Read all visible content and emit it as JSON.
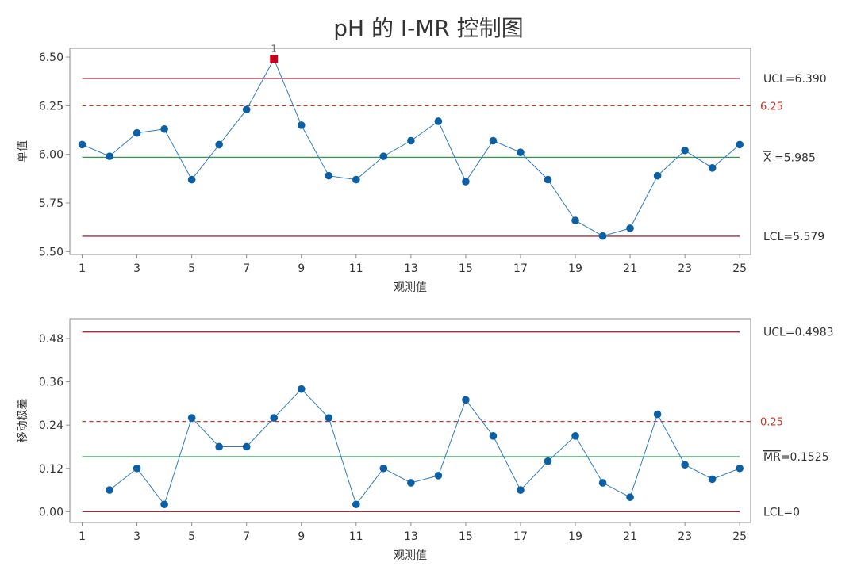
{
  "title": "pH 的 I-MR 控制图",
  "chart_data": [
    {
      "type": "line",
      "panel": "individuals",
      "xlabel": "观测值",
      "ylabel": "单值",
      "x": [
        1,
        2,
        3,
        4,
        5,
        6,
        7,
        8,
        9,
        10,
        11,
        12,
        13,
        14,
        15,
        16,
        17,
        18,
        19,
        20,
        21,
        22,
        23,
        24,
        25
      ],
      "xticks": [
        1,
        3,
        5,
        7,
        9,
        11,
        13,
        15,
        17,
        19,
        21,
        23,
        25
      ],
      "xlim": [
        0.55,
        25.4
      ],
      "yticks": [
        5.5,
        5.75,
        6.0,
        6.25,
        6.5
      ],
      "ytick_labels": [
        "5.50",
        "5.75",
        "6.00",
        "6.25",
        "6.50"
      ],
      "ylim": [
        5.485,
        6.545
      ],
      "values": [
        6.05,
        5.99,
        6.11,
        6.13,
        5.87,
        6.05,
        6.23,
        6.49,
        6.15,
        5.89,
        5.87,
        5.99,
        6.07,
        6.17,
        5.86,
        6.07,
        6.01,
        5.87,
        5.66,
        5.58,
        5.62,
        5.89,
        6.02,
        5.93,
        6.05
      ],
      "flagged": [
        {
          "index": 8,
          "label": "1"
        }
      ],
      "limits": {
        "ucl": {
          "value": 6.39,
          "label": "UCL=6.390"
        },
        "center": {
          "value": 5.985,
          "label_symbol": "X",
          "label_rest": " =5.985"
        },
        "lcl": {
          "value": 5.579,
          "label": "LCL=5.579"
        },
        "spec": {
          "value": 6.25,
          "label": "6.25"
        }
      },
      "grid": false
    },
    {
      "type": "line",
      "panel": "moving-range",
      "xlabel": "观测值",
      "ylabel": "移动极差",
      "x": [
        1,
        2,
        3,
        4,
        5,
        6,
        7,
        8,
        9,
        10,
        11,
        12,
        13,
        14,
        15,
        16,
        17,
        18,
        19,
        20,
        21,
        22,
        23,
        24,
        25
      ],
      "xticks": [
        1,
        3,
        5,
        7,
        9,
        11,
        13,
        15,
        17,
        19,
        21,
        23,
        25
      ],
      "xlim": [
        0.55,
        25.4
      ],
      "yticks": [
        0.0,
        0.12,
        0.24,
        0.36,
        0.48
      ],
      "ytick_labels": [
        "0.00",
        "0.12",
        "0.24",
        "0.36",
        "0.48"
      ],
      "ylim": [
        -0.03,
        0.535
      ],
      "values": [
        null,
        0.06,
        0.12,
        0.02,
        0.26,
        0.18,
        0.18,
        0.26,
        0.34,
        0.26,
        0.02,
        0.12,
        0.08,
        0.1,
        0.31,
        0.21,
        0.06,
        0.14,
        0.21,
        0.08,
        0.04,
        0.27,
        0.13,
        0.09,
        0.12
      ],
      "flagged": [],
      "limits": {
        "ucl": {
          "value": 0.4983,
          "label": "UCL=0.4983"
        },
        "center": {
          "value": 0.1525,
          "label_symbol": "MR",
          "label_rest": "=0.1525"
        },
        "lcl": {
          "value": 0,
          "label": "LCL=0"
        },
        "spec": {
          "value": 0.25,
          "label": "0.25"
        }
      },
      "grid": false
    }
  ],
  "colors": {
    "series": "#2E7BBF",
    "marker": "#0B5FA5",
    "flagged": "#C8001E",
    "limit": "#A52A3C",
    "center": "#2E9C47",
    "spec": "#C0392B",
    "axis": "#8C8C8C",
    "text": "#333333"
  }
}
